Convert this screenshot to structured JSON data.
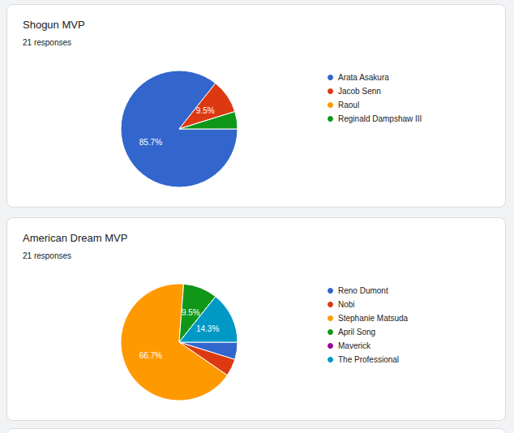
{
  "chart_data": [
    {
      "type": "pie",
      "title": "Shogun MVP",
      "subtitle": "21 responses",
      "categories": [
        "Arata Asakura",
        "Jacob Senn",
        "Raoul",
        "Reginald Dampshaw III"
      ],
      "values": [
        85.7,
        9.5,
        0,
        4.8
      ],
      "value_labels": [
        "85.7%",
        "9.5%",
        null,
        null
      ],
      "colors": [
        "#3366cc",
        "#dc3912",
        "#ff9900",
        "#109618"
      ],
      "legend": "right",
      "data_labels": true
    },
    {
      "type": "pie",
      "title": "American Dream MVP",
      "subtitle": "21 responses",
      "categories": [
        "Reno Dumont",
        "Nobi",
        "Stephanie Matsuda",
        "April Song",
        "Maverick",
        "The Professional"
      ],
      "values": [
        4.8,
        4.8,
        66.7,
        9.5,
        0,
        14.3
      ],
      "value_labels": [
        null,
        null,
        "66.7%",
        "9.5%",
        null,
        "14.3%"
      ],
      "colors": [
        "#3366cc",
        "#dc3912",
        "#ff9900",
        "#109618",
        "#990099",
        "#0099c6"
      ],
      "legend": "right",
      "data_labels": true
    }
  ]
}
